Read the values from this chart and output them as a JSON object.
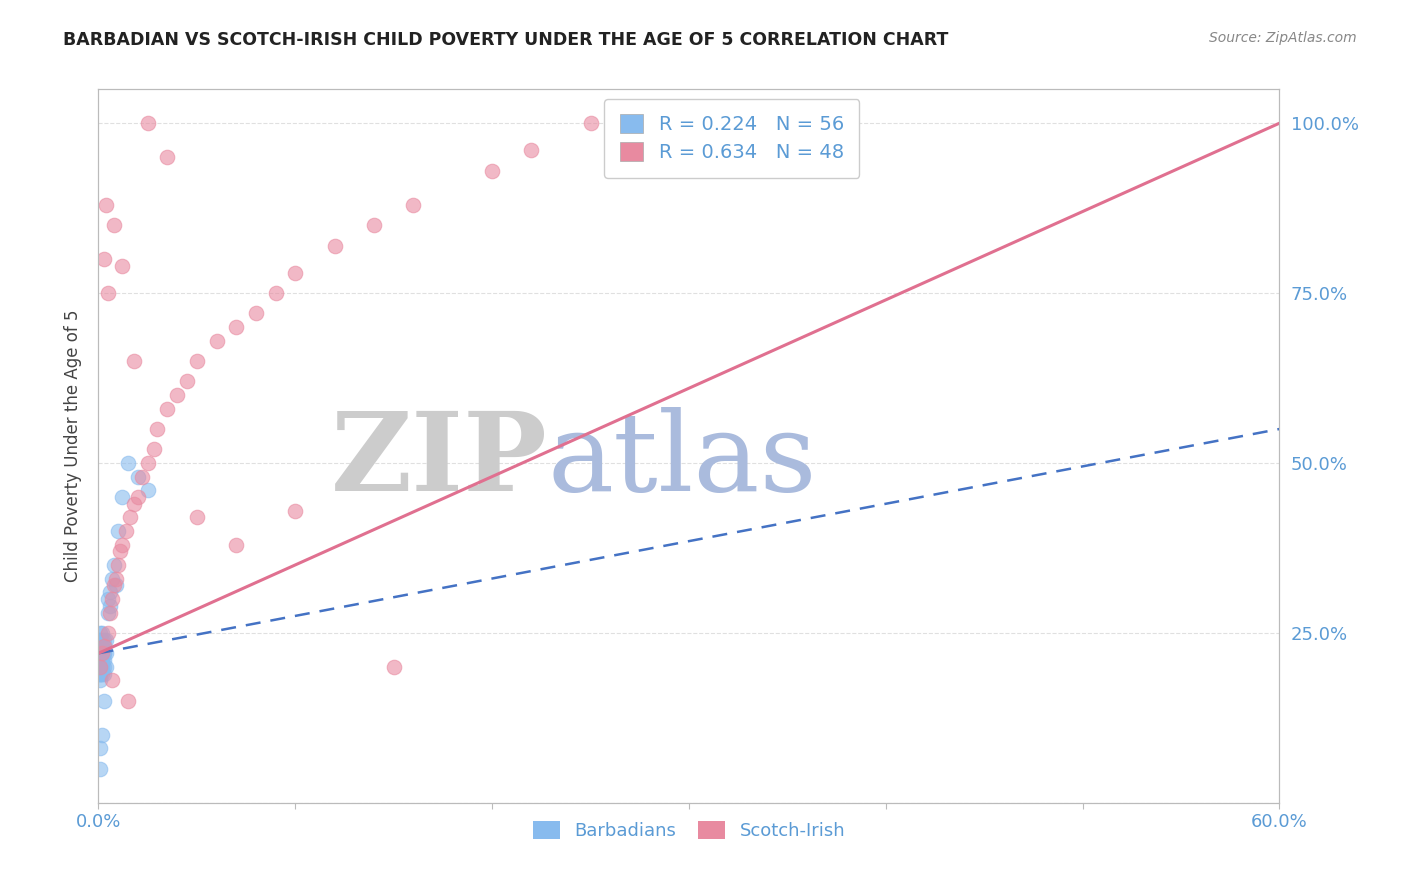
{
  "title": "BARBADIAN VS SCOTCH-IRISH CHILD POVERTY UNDER THE AGE OF 5 CORRELATION CHART",
  "source": "Source: ZipAtlas.com",
  "ylabel": "Child Poverty Under the Age of 5",
  "title_color": "#222222",
  "source_color": "#888888",
  "axis_color": "#bbbbbb",
  "tick_color_blue": "#5b9bd5",
  "grid_color": "#dddddd",
  "barbadian_color": "#88bbee",
  "scotchirish_color": "#e88aa0",
  "blue_line_color": "#4472c4",
  "pink_line_color": "#e07090",
  "blue_dash_color": "#99bbdd",
  "watermark_ZIP_color": "#cccccc",
  "watermark_atlas_color": "#aabbdd",
  "xlim": [
    0.0,
    0.6
  ],
  "ylim": [
    0.0,
    1.05
  ],
  "R_barbadian": 0.224,
  "N_barbadian": 56,
  "R_scotchirish": 0.634,
  "N_scotchirish": 48,
  "blue_line_x0": 0.0,
  "blue_line_y0": 0.22,
  "blue_line_x1": 0.6,
  "blue_line_y1": 0.55,
  "pink_line_x0": 0.0,
  "pink_line_y0": 0.22,
  "pink_line_x1": 0.6,
  "pink_line_y1": 1.0,
  "barbadian_x": [
    0.001,
    0.001,
    0.001,
    0.001,
    0.001,
    0.001,
    0.001,
    0.001,
    0.001,
    0.001,
    0.001,
    0.001,
    0.001,
    0.001,
    0.001,
    0.001,
    0.001,
    0.001,
    0.001,
    0.001,
    0.002,
    0.002,
    0.002,
    0.002,
    0.002,
    0.002,
    0.002,
    0.002,
    0.002,
    0.002,
    0.003,
    0.003,
    0.003,
    0.003,
    0.003,
    0.003,
    0.003,
    0.004,
    0.004,
    0.004,
    0.005,
    0.005,
    0.006,
    0.006,
    0.007,
    0.008,
    0.009,
    0.01,
    0.012,
    0.015,
    0.02,
    0.025,
    0.001,
    0.001,
    0.002,
    0.003
  ],
  "barbadian_y": [
    0.2,
    0.21,
    0.22,
    0.23,
    0.19,
    0.24,
    0.2,
    0.21,
    0.22,
    0.18,
    0.23,
    0.2,
    0.21,
    0.19,
    0.22,
    0.24,
    0.25,
    0.2,
    0.21,
    0.19,
    0.2,
    0.22,
    0.24,
    0.21,
    0.19,
    0.23,
    0.2,
    0.22,
    0.25,
    0.21,
    0.22,
    0.24,
    0.2,
    0.21,
    0.23,
    0.19,
    0.22,
    0.24,
    0.2,
    0.22,
    0.3,
    0.28,
    0.31,
    0.29,
    0.33,
    0.35,
    0.32,
    0.4,
    0.45,
    0.5,
    0.48,
    0.46,
    0.05,
    0.08,
    0.1,
    0.15
  ],
  "scotchirish_x": [
    0.001,
    0.002,
    0.003,
    0.005,
    0.006,
    0.007,
    0.008,
    0.009,
    0.01,
    0.011,
    0.012,
    0.014,
    0.016,
    0.018,
    0.02,
    0.022,
    0.025,
    0.028,
    0.03,
    0.035,
    0.04,
    0.045,
    0.05,
    0.06,
    0.07,
    0.08,
    0.09,
    0.1,
    0.12,
    0.14,
    0.16,
    0.2,
    0.22,
    0.25,
    0.003,
    0.005,
    0.008,
    0.012,
    0.018,
    0.025,
    0.035,
    0.05,
    0.07,
    0.1,
    0.15,
    0.004,
    0.007,
    0.015
  ],
  "scotchirish_y": [
    0.2,
    0.22,
    0.23,
    0.25,
    0.28,
    0.3,
    0.32,
    0.33,
    0.35,
    0.37,
    0.38,
    0.4,
    0.42,
    0.44,
    0.45,
    0.48,
    0.5,
    0.52,
    0.55,
    0.58,
    0.6,
    0.62,
    0.65,
    0.68,
    0.7,
    0.72,
    0.75,
    0.78,
    0.82,
    0.85,
    0.88,
    0.93,
    0.96,
    1.0,
    0.8,
    0.75,
    0.85,
    0.79,
    0.65,
    1.0,
    0.95,
    0.42,
    0.38,
    0.43,
    0.2,
    0.88,
    0.18,
    0.15
  ]
}
